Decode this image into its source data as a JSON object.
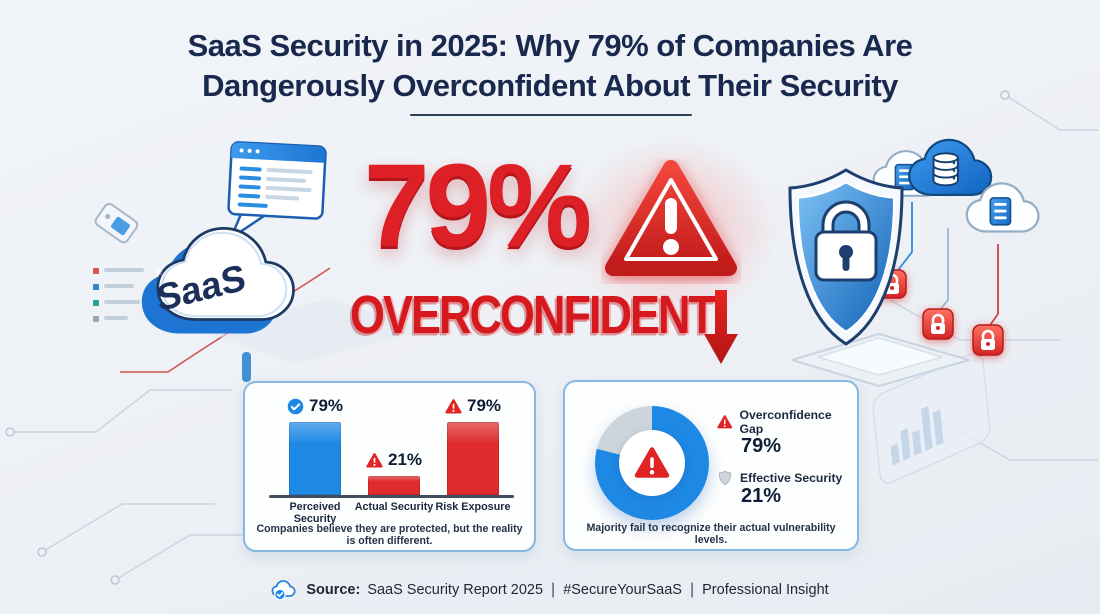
{
  "title": {
    "line1": "SaaS Security in 2025: Why 79% of Companies Are",
    "line2": "Dangerously Overconfident About Their Security"
  },
  "hero": {
    "percent": "79%",
    "word": "OVERCONFIDENT"
  },
  "left_illustration": {
    "cloud_label": "SaaS"
  },
  "footer": {
    "source_label": "Source:",
    "report": "SaaS Security Report 2025",
    "sep1": "|",
    "hashtag": "#SecureYourSaaS",
    "sep2": "|",
    "insight": "Professional Insight"
  },
  "colors": {
    "accent_blue": "#1e88e5",
    "alert_red": "#df2b2b",
    "navy": "#19294e",
    "donut_gray": "#ccd4dc",
    "card_border": "#85b9e2"
  },
  "chart_data": [
    {
      "type": "bar",
      "categories": [
        "Perceived Security",
        "Actual Security",
        "Risk Exposure"
      ],
      "values": [
        79,
        21,
        79
      ],
      "value_labels": [
        "79%",
        "21%",
        "79%"
      ],
      "bar_colors": [
        "#1e88e5",
        "#df2b2b",
        "#df2b2b"
      ],
      "value_icons": [
        "check-circle",
        "warning-triangle",
        "warning-triangle"
      ],
      "ylim": [
        0,
        100
      ],
      "grid": false,
      "caption": "Companies believe they are protected, but the reality is often different."
    },
    {
      "type": "pie",
      "donut": true,
      "slices": [
        {
          "label": "Overconfidence Gap",
          "value": 79,
          "value_label": "79%",
          "color": "#1e88e5",
          "icon": "warning-triangle"
        },
        {
          "label": "Effective Security",
          "value": 21,
          "value_label": "21%",
          "color": "#ccd4dc",
          "icon": "shield"
        }
      ],
      "center_icon": "warning-triangle",
      "legend_position": "right",
      "caption": "Majority fail to recognize their actual vulnerability levels."
    }
  ]
}
